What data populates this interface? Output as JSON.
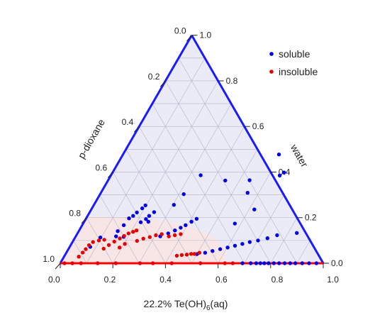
{
  "chart_data": {
    "type": "scatter",
    "subtype": "ternary",
    "title": "",
    "axes": {
      "bottom": {
        "label_main": "22.2% Te(OH)",
        "label_sub": "6",
        "label_tail": "(aq)",
        "range": [
          0,
          1
        ],
        "ticks": [
          "0.0",
          "0.2",
          "0.4",
          "0.6",
          "0.8",
          "1.0"
        ]
      },
      "right": {
        "label": "water",
        "range": [
          0,
          1
        ],
        "ticks": [
          "0.0",
          "0.2",
          "0.4",
          "0.6",
          "0.8",
          "1.0"
        ]
      },
      "left": {
        "label": "p-dioxane",
        "range": [
          0,
          1
        ],
        "ticks": [
          "0.0",
          "0.2",
          "0.4",
          "0.6",
          "0.8",
          "1.0"
        ]
      }
    },
    "grid": true,
    "grid_step": 0.1,
    "legend_position": "top-right",
    "colors": {
      "soluble": "#0000e6",
      "insoluble": "#e60000",
      "frame_blue": "#1a1aff",
      "frame_red": "#ff0000",
      "grid": "#b3b3c8",
      "fill_region": "#ebebf8",
      "insoluble_region": "#f8e6e6"
    },
    "series": [
      {
        "name": "soluble",
        "color": "#0000e6",
        "points": [
          [
            0.693,
            0.0
          ],
          [
            0.724,
            0.0
          ],
          [
            0.745,
            0.0
          ],
          [
            0.761,
            0.0
          ],
          [
            0.776,
            0.0
          ],
          [
            0.792,
            0.0
          ],
          [
            0.812,
            0.0
          ],
          [
            0.832,
            0.0
          ],
          [
            0.853,
            0.0
          ],
          [
            0.874,
            0.0
          ],
          [
            0.894,
            0.0
          ],
          [
            0.92,
            0.0
          ],
          [
            0.946,
            0.0
          ],
          [
            0.974,
            0.0
          ],
          [
            0.5,
            0.04
          ],
          [
            0.528,
            0.046
          ],
          [
            0.552,
            0.054
          ],
          [
            0.577,
            0.062
          ],
          [
            0.602,
            0.069
          ],
          [
            0.626,
            0.077
          ],
          [
            0.65,
            0.085
          ],
          [
            0.674,
            0.093
          ],
          [
            0.702,
            0.1
          ],
          [
            0.733,
            0.11
          ],
          [
            0.763,
            0.123
          ],
          [
            0.833,
            0.133
          ],
          [
            0.321,
            0.118
          ],
          [
            0.345,
            0.131
          ],
          [
            0.364,
            0.144
          ],
          [
            0.38,
            0.156
          ],
          [
            0.393,
            0.167
          ],
          [
            0.408,
            0.182
          ],
          [
            0.421,
            0.195
          ],
          [
            0.577,
            0.174
          ],
          [
            0.62,
            0.236
          ],
          [
            0.558,
            0.309
          ],
          [
            0.642,
            0.385
          ],
          [
            0.652,
            0.398
          ],
          [
            0.593,
            0.477
          ],
          [
            0.538,
            0.364
          ],
          [
            0.446,
            0.363
          ],
          [
            0.341,
            0.386
          ],
          [
            0.318,
            0.303
          ],
          [
            0.304,
            0.256
          ],
          [
            0.244,
            0.182
          ],
          [
            0.183,
            0.116
          ],
          [
            0.153,
            0.118
          ],
          [
            0.148,
            0.141
          ],
          [
            0.158,
            0.167
          ],
          [
            0.163,
            0.197
          ],
          [
            0.173,
            0.208
          ],
          [
            0.18,
            0.223
          ],
          [
            0.191,
            0.241
          ],
          [
            0.197,
            0.254
          ],
          [
            0.216,
            0.18
          ],
          [
            0.229,
            0.194
          ],
          [
            0.234,
            0.208
          ],
          [
            0.245,
            0.224
          ],
          [
            0.096,
            0.113
          ],
          [
            0.078,
            0.072
          ]
        ]
      },
      {
        "name": "insoluble",
        "color": "#e60000",
        "points": [
          [
            0.016,
            0.0
          ],
          [
            0.046,
            0.0
          ],
          [
            0.079,
            0.0
          ],
          [
            0.142,
            0.0
          ],
          [
            0.211,
            0.0
          ],
          [
            0.303,
            0.0
          ],
          [
            0.352,
            0.0
          ],
          [
            0.424,
            0.0
          ],
          [
            0.533,
            0.0
          ],
          [
            0.626,
            0.0
          ],
          [
            0.656,
            0.0
          ],
          [
            0.056,
            0.029
          ],
          [
            0.062,
            0.047
          ],
          [
            0.066,
            0.062
          ],
          [
            0.07,
            0.079
          ],
          [
            0.078,
            0.093
          ],
          [
            0.097,
            0.1
          ],
          [
            0.116,
            0.103
          ],
          [
            0.133,
            0.064
          ],
          [
            0.145,
            0.08
          ],
          [
            0.158,
            0.095
          ],
          [
            0.172,
            0.109
          ],
          [
            0.183,
            0.12
          ],
          [
            0.194,
            0.131
          ],
          [
            0.208,
            0.138
          ],
          [
            0.218,
            0.144
          ],
          [
            0.191,
            0.069
          ],
          [
            0.203,
            0.085
          ],
          [
            0.243,
            0.098
          ],
          [
            0.262,
            0.108
          ],
          [
            0.283,
            0.115
          ],
          [
            0.302,
            0.123
          ],
          [
            0.322,
            0.128
          ],
          [
            0.354,
            0.118
          ],
          [
            0.374,
            0.123
          ],
          [
            0.394,
            0.128
          ],
          [
            0.427,
            0.033
          ],
          [
            0.444,
            0.036
          ],
          [
            0.462,
            0.038
          ],
          [
            0.477,
            0.041
          ],
          [
            0.49,
            0.041
          ],
          [
            0.506,
            0.046
          ]
        ]
      }
    ]
  }
}
